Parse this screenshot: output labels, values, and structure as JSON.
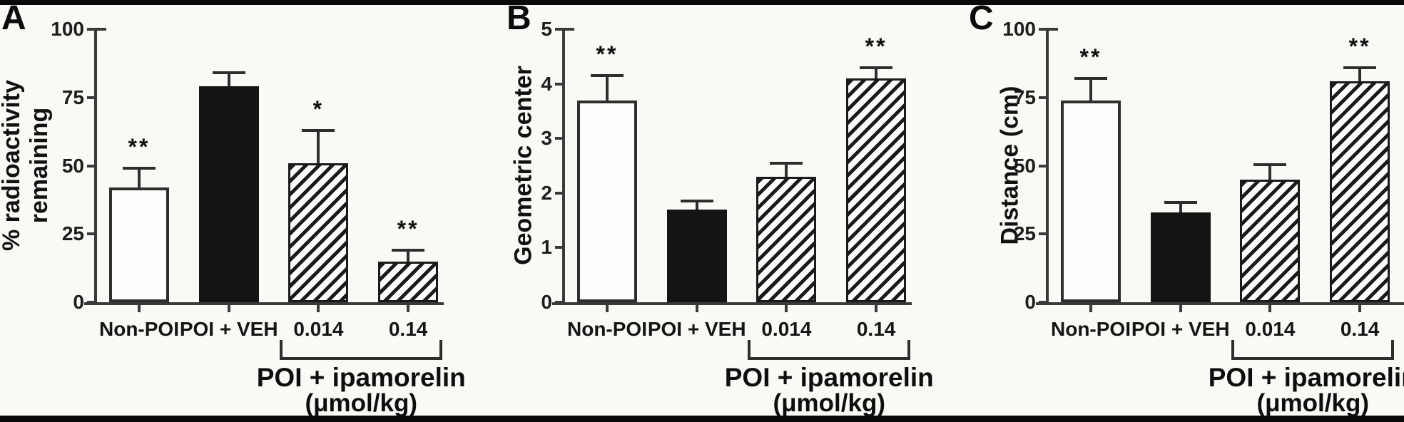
{
  "figure": {
    "background": "#f9f9f6",
    "frame_color": "#0a0a0a",
    "axis_color": "#3a3a3a",
    "bar_fill_open": "#fdfdfc",
    "bar_fill_solid": "#141414",
    "hatch_color": "#1a1a1a"
  },
  "chart_data": [
    {
      "type": "bar",
      "panel": "A",
      "title": "",
      "ylabel": "% radioactivity remaining",
      "ylabel_lines": [
        "% radioactivity",
        "remaining"
      ],
      "xlabel": "",
      "ylim": [
        0,
        100
      ],
      "yticks": [
        0,
        25,
        50,
        75,
        100
      ],
      "grid": false,
      "legend": "none",
      "categories": [
        "Non-POI",
        "POI + VEH",
        "0.014",
        "0.14"
      ],
      "values": [
        42,
        79,
        51,
        15
      ],
      "errors_plus": [
        7,
        5,
        12,
        4
      ],
      "significance": [
        "**",
        "",
        "*",
        "**"
      ],
      "bar_styles": [
        "open",
        "solid",
        "hatched",
        "hatched"
      ],
      "group_span": [
        2,
        3
      ],
      "group_label_lines": [
        "POI + ipamorelin",
        "(μmol/kg)"
      ]
    },
    {
      "type": "bar",
      "panel": "B",
      "title": "",
      "ylabel": "Geometric center",
      "ylabel_lines": [
        "Geometric center"
      ],
      "xlabel": "",
      "ylim": [
        0,
        5
      ],
      "yticks": [
        0,
        1,
        2,
        3,
        4,
        5
      ],
      "grid": false,
      "legend": "none",
      "categories": [
        "Non-POI",
        "POI + VEH",
        "0.014",
        "0.14"
      ],
      "values": [
        3.7,
        1.7,
        2.3,
        4.1
      ],
      "errors_plus": [
        0.45,
        0.15,
        0.25,
        0.2
      ],
      "significance": [
        "**",
        "",
        "",
        "**"
      ],
      "bar_styles": [
        "open",
        "solid",
        "hatched",
        "hatched"
      ],
      "group_span": [
        2,
        3
      ],
      "group_label_lines": [
        "POI + ipamorelin",
        "(μmol/kg)"
      ]
    },
    {
      "type": "bar",
      "panel": "C",
      "title": "",
      "ylabel": "Distance (cm)",
      "ylabel_lines": [
        "Distance (cm)"
      ],
      "xlabel": "",
      "ylim": [
        0,
        100
      ],
      "yticks": [
        0,
        25,
        50,
        75,
        100
      ],
      "grid": false,
      "legend": "none",
      "categories": [
        "Non-POI",
        "POI + VEH",
        "0.014",
        "0.14"
      ],
      "values": [
        74,
        33,
        45,
        81
      ],
      "errors_plus": [
        8,
        3.5,
        5.5,
        5
      ],
      "significance": [
        "**",
        "",
        "",
        "**"
      ],
      "bar_styles": [
        "open",
        "solid",
        "hatched",
        "hatched"
      ],
      "group_span": [
        2,
        3
      ],
      "group_label_lines": [
        "POI + ipamorelin",
        "(μmol/kg)"
      ]
    }
  ]
}
